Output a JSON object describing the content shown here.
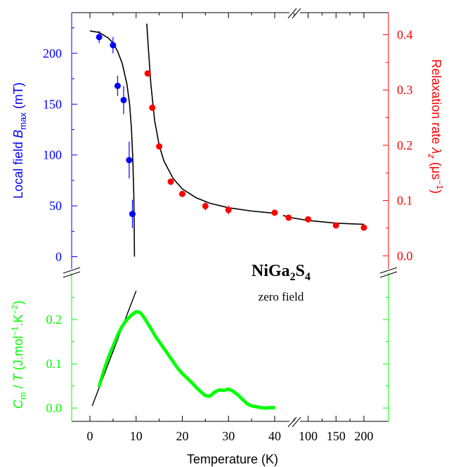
{
  "chart_data": {
    "type": "scatter",
    "title": "NiGa2S4",
    "subtitle": "zero field",
    "compound": {
      "base": "NiGa",
      "sub1": "2",
      "mid": "S",
      "sub2": "4"
    },
    "xlabel": "Temperature (K)",
    "xaxis": {
      "scale": "broken-linear",
      "segments": [
        {
          "range": [
            0,
            40
          ],
          "ticks": [
            0,
            10,
            20,
            30,
            40
          ]
        },
        {
          "range": [
            40,
            200
          ],
          "ticks": [
            100,
            150,
            200
          ]
        }
      ],
      "break_marks": true
    },
    "panels": {
      "top": {
        "left_axis": {
          "label_prefix": "Local field ",
          "label_symbol": "B",
          "label_subscript": "max",
          "label_suffix": " (mT)",
          "color": "#0000ff",
          "ylim": [
            -10,
            240
          ],
          "ticks": [
            0,
            50,
            100,
            150,
            200
          ]
        },
        "right_axis": {
          "label_prefix": "Relaxation rate ",
          "label_symbol": "λ",
          "label_subscript": "z",
          "label_unit": " (μs",
          "label_unit_sup": "−1",
          "label_end": ")",
          "color": "#ff0000",
          "ylim": [
            -0.02,
            0.44
          ],
          "ticks": [
            "0.0",
            "0.1",
            "0.2",
            "0.3",
            "0.4"
          ]
        },
        "series": [
          {
            "axis": "left",
            "color": "#0000ff",
            "points": [
              {
                "x": 2.0,
                "y": 216,
                "err": 6
              },
              {
                "x": 5.0,
                "y": 208,
                "err": 8
              },
              {
                "x": 6.0,
                "y": 168,
                "err": 10
              },
              {
                "x": 7.3,
                "y": 154,
                "err": 14
              },
              {
                "x": 8.5,
                "y": 95,
                "err": 18
              },
              {
                "x": 9.2,
                "y": 42,
                "err": 14
              }
            ],
            "fit": [
              [
                0,
                222
              ],
              [
                2,
                220.5
              ],
              [
                4,
                215
              ],
              [
                5,
                210
              ],
              [
                6,
                202
              ],
              [
                7,
                190
              ],
              [
                8,
                170
              ],
              [
                8.6,
                150
              ],
              [
                9.0,
                125
              ],
              [
                9.3,
                95
              ],
              [
                9.5,
                60
              ],
              [
                9.6,
                25
              ],
              [
                9.65,
                0
              ]
            ]
          },
          {
            "axis": "right",
            "color": "#ff0000",
            "points": [
              {
                "x": 12.5,
                "y": 0.33,
                "err": 0.006
              },
              {
                "x": 13.5,
                "y": 0.268,
                "err": 0.006
              },
              {
                "x": 15,
                "y": 0.198,
                "err": 0.005
              },
              {
                "x": 17.5,
                "y": 0.134,
                "err": 0.004
              },
              {
                "x": 20,
                "y": 0.112,
                "err": 0.004
              },
              {
                "x": 25,
                "y": 0.09,
                "err": 0.008
              },
              {
                "x": 30,
                "y": 0.083,
                "err": 0.008
              },
              {
                "x": 40,
                "y": 0.078,
                "err": 0.004
              },
              {
                "x": 65,
                "y": 0.069,
                "err": 0.004
              },
              {
                "x": 100,
                "y": 0.066,
                "err": 0.004
              },
              {
                "x": 150,
                "y": 0.055,
                "err": 0.003
              },
              {
                "x": 200,
                "y": 0.051,
                "err": 0.003
              }
            ],
            "fit": [
              [
                12.3,
                0.42
              ],
              [
                12.7,
                0.37
              ],
              [
                13.2,
                0.31
              ],
              [
                14,
                0.245
              ],
              [
                15,
                0.2
              ],
              [
                16,
                0.172
              ],
              [
                18,
                0.14
              ],
              [
                20,
                0.121
              ],
              [
                23,
                0.105
              ],
              [
                26,
                0.095
              ],
              [
                30,
                0.087
              ],
              [
                35,
                0.081
              ],
              [
                40,
                0.077
              ],
              [
                55,
                0.073
              ],
              [
                70,
                0.069
              ],
              [
                100,
                0.064
              ],
              [
                150,
                0.059
              ],
              [
                200,
                0.057
              ]
            ]
          }
        ]
      },
      "bottom": {
        "left_axis": {
          "label_symbol": "C",
          "label_subscript": "m",
          "label_mid": " / ",
          "label_symbol2": "T",
          "label_unit": " (J.mol",
          "label_sup1": "−1",
          "label_unit2": ".K",
          "label_sup2": "−2",
          "label_end": ")",
          "color": "#00ff00",
          "ylim": [
            -0.03,
            0.3
          ],
          "ticks": [
            "0.0",
            "0.1",
            "0.2"
          ]
        },
        "series": [
          {
            "color": "#00ff00",
            "curve": [
              [
                2,
                0.05
              ],
              [
                3,
                0.085
              ],
              [
                4,
                0.115
              ],
              [
                5,
                0.14
              ],
              [
                6,
                0.165
              ],
              [
                7,
                0.185
              ],
              [
                8,
                0.2
              ],
              [
                9,
                0.21
              ],
              [
                10,
                0.218
              ],
              [
                11,
                0.215
              ],
              [
                12,
                0.2
              ],
              [
                13,
                0.183
              ],
              [
                14,
                0.165
              ],
              [
                15,
                0.15
              ],
              [
                16,
                0.135
              ],
              [
                17,
                0.12
              ],
              [
                18,
                0.105
              ],
              [
                19,
                0.09
              ],
              [
                20,
                0.078
              ],
              [
                21,
                0.068
              ],
              [
                22,
                0.058
              ],
              [
                23,
                0.047
              ],
              [
                24,
                0.037
              ],
              [
                25,
                0.028
              ],
              [
                26,
                0.027
              ],
              [
                27,
                0.036
              ],
              [
                28,
                0.041
              ],
              [
                29,
                0.04
              ],
              [
                30,
                0.043
              ],
              [
                31,
                0.038
              ],
              [
                32,
                0.03
              ],
              [
                33,
                0.02
              ],
              [
                34,
                0.01
              ],
              [
                35,
                0.005
              ],
              [
                36,
                0.003
              ],
              [
                37,
                0.001
              ],
              [
                38,
                0.0
              ],
              [
                39,
                0.001
              ],
              [
                40,
                0.001
              ]
            ],
            "fit": [
              [
                0.5,
                0.005
              ],
              [
                10,
                0.265
              ]
            ]
          }
        ]
      }
    }
  }
}
